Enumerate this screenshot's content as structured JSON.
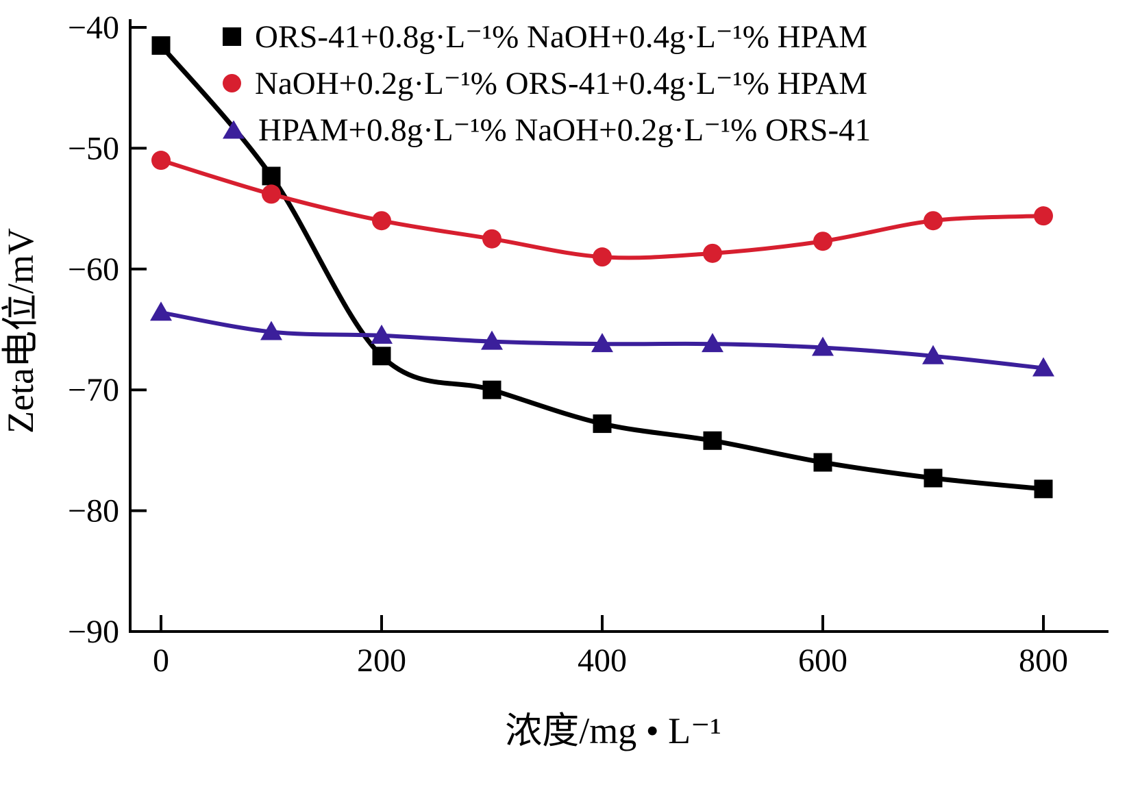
{
  "chart_data": {
    "type": "line",
    "title": "",
    "xlabel": "浓度/mg • L⁻¹",
    "ylabel": "Zeta电位/mV",
    "xlim": [
      0,
      800
    ],
    "ylim": [
      -90,
      -40
    ],
    "x_ticks": [
      0,
      200,
      400,
      600,
      800
    ],
    "y_ticks": [
      -40,
      -50,
      -60,
      -70,
      -80,
      -90
    ],
    "grid": false,
    "legend_position": "top-left-inside",
    "x": [
      0,
      100,
      200,
      300,
      400,
      500,
      600,
      700,
      800
    ],
    "series": [
      {
        "name": "ORS-41+0.8g·L⁻¹% NaOH+0.4g·L⁻¹% HPAM",
        "marker": "square",
        "color": "#000000",
        "values": [
          -41.5,
          -52.3,
          -67.2,
          -70.0,
          -72.8,
          -74.2,
          -76.0,
          -77.3,
          -78.2
        ]
      },
      {
        "name": "NaOH+0.2g·L⁻¹% ORS-41+0.4g·L⁻¹% HPAM",
        "marker": "circle",
        "color": "#d71f2f",
        "values": [
          -51.0,
          -53.8,
          -56.0,
          -57.5,
          -59.0,
          -58.7,
          -57.7,
          -56.0,
          -55.6
        ]
      },
      {
        "name": "HPAM+0.8g·L⁻¹% NaOH+0.2g·L⁻¹% ORS-41",
        "marker": "triangle",
        "color": "#3b1f9b",
        "values": [
          -63.6,
          -65.2,
          -65.5,
          -66.0,
          -66.2,
          -66.2,
          -66.5,
          -67.2,
          -68.2
        ]
      }
    ]
  }
}
